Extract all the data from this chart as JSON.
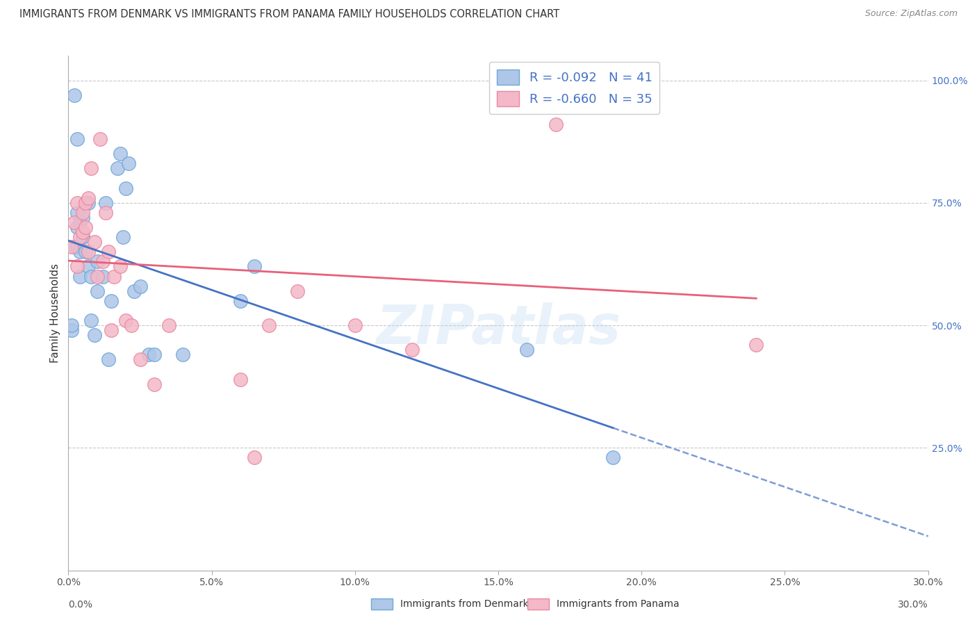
{
  "title": "IMMIGRANTS FROM DENMARK VS IMMIGRANTS FROM PANAMA FAMILY HOUSEHOLDS CORRELATION CHART",
  "source": "Source: ZipAtlas.com",
  "ylabel": "Family Households",
  "ylabel_right_ticks": [
    "100.0%",
    "75.0%",
    "50.0%",
    "25.0%"
  ],
  "ylabel_right_vals": [
    1.0,
    0.75,
    0.5,
    0.25
  ],
  "xlim": [
    0.0,
    0.3
  ],
  "ylim": [
    0.0,
    1.05
  ],
  "denmark_color": "#aec6e8",
  "panama_color": "#f4b8c8",
  "denmark_edge": "#6fa8d8",
  "panama_edge": "#e88aa0",
  "denmark_line_color": "#4472c4",
  "panama_line_color": "#e8607a",
  "R_denmark": -0.092,
  "N_denmark": 41,
  "R_panama": -0.66,
  "N_panama": 35,
  "denmark_x": [
    0.001,
    0.001,
    0.002,
    0.002,
    0.003,
    0.003,
    0.003,
    0.003,
    0.004,
    0.004,
    0.004,
    0.005,
    0.005,
    0.005,
    0.006,
    0.006,
    0.007,
    0.007,
    0.008,
    0.008,
    0.009,
    0.01,
    0.01,
    0.012,
    0.013,
    0.014,
    0.015,
    0.017,
    0.018,
    0.019,
    0.02,
    0.021,
    0.023,
    0.025,
    0.028,
    0.03,
    0.04,
    0.06,
    0.065,
    0.16,
    0.19
  ],
  "denmark_y": [
    0.49,
    0.5,
    0.66,
    0.97,
    0.66,
    0.7,
    0.73,
    0.88,
    0.6,
    0.65,
    0.71,
    0.68,
    0.68,
    0.72,
    0.65,
    0.75,
    0.62,
    0.75,
    0.51,
    0.6,
    0.48,
    0.57,
    0.63,
    0.6,
    0.75,
    0.43,
    0.55,
    0.82,
    0.85,
    0.68,
    0.78,
    0.83,
    0.57,
    0.58,
    0.44,
    0.44,
    0.44,
    0.55,
    0.62,
    0.45,
    0.23
  ],
  "panama_x": [
    0.001,
    0.002,
    0.003,
    0.003,
    0.004,
    0.005,
    0.005,
    0.006,
    0.006,
    0.007,
    0.007,
    0.008,
    0.009,
    0.01,
    0.011,
    0.012,
    0.013,
    0.014,
    0.015,
    0.016,
    0.018,
    0.02,
    0.022,
    0.025,
    0.03,
    0.035,
    0.06,
    0.065,
    0.07,
    0.08,
    0.1,
    0.12,
    0.15,
    0.17,
    0.24
  ],
  "panama_y": [
    0.66,
    0.71,
    0.62,
    0.75,
    0.68,
    0.69,
    0.73,
    0.7,
    0.75,
    0.65,
    0.76,
    0.82,
    0.67,
    0.6,
    0.88,
    0.63,
    0.73,
    0.65,
    0.49,
    0.6,
    0.62,
    0.51,
    0.5,
    0.43,
    0.38,
    0.5,
    0.39,
    0.23,
    0.5,
    0.57,
    0.5,
    0.45,
    0.96,
    0.91,
    0.46
  ],
  "watermark": "ZIPatlas",
  "background_color": "#ffffff",
  "grid_color": "#c8c8c8"
}
